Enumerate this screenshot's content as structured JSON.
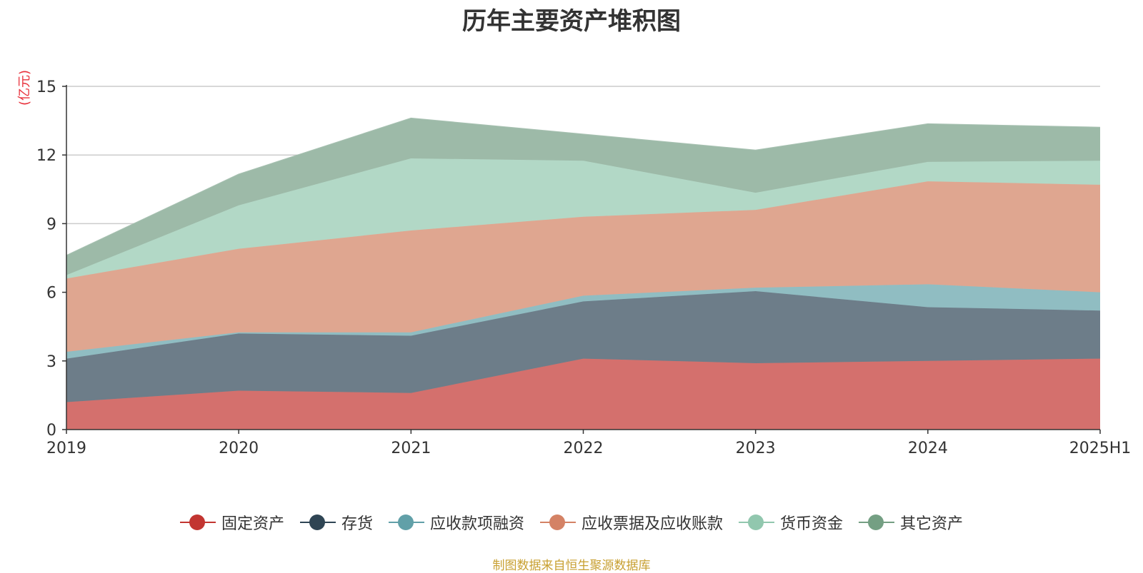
{
  "chart_data": {
    "type": "area",
    "stacked": true,
    "title": "历年主要资产堆积图",
    "unit_label": "(亿元)",
    "source_note": "制图数据来自恒生聚源数据库",
    "categories": [
      "2019",
      "2020",
      "2021",
      "2022",
      "2023",
      "2024",
      "2025H1"
    ],
    "ylim": [
      0,
      15
    ],
    "yticks": [
      0,
      3,
      6,
      9,
      12,
      15
    ],
    "grid": true,
    "legend_position": "bottom",
    "series": [
      {
        "name": "固定资产",
        "color": "#c23531",
        "area_color": "#d4706d",
        "values": [
          1.2,
          1.7,
          1.6,
          3.1,
          2.9,
          3.0,
          3.1
        ]
      },
      {
        "name": "存货",
        "color": "#2f4554",
        "area_color": "#6d7d89",
        "values": [
          1.9,
          2.5,
          2.5,
          2.5,
          3.15,
          2.35,
          2.1
        ]
      },
      {
        "name": "应收款项融资",
        "color": "#61a0a8",
        "area_color": "#90bdc2",
        "values": [
          0.3,
          0.05,
          0.15,
          0.25,
          0.15,
          1.0,
          0.8
        ]
      },
      {
        "name": "应收票据及应收账款",
        "color": "#d48265",
        "area_color": "#dfa690",
        "values": [
          3.2,
          3.65,
          4.45,
          3.45,
          3.4,
          4.5,
          4.7
        ]
      },
      {
        "name": "货币资金",
        "color": "#91c7ae",
        "area_color": "#b2d8c6",
        "values": [
          0.15,
          1.9,
          3.15,
          2.45,
          0.75,
          0.85,
          1.05
        ]
      },
      {
        "name": "其它资产",
        "color": "#749f83",
        "area_color": "#9dbaa8",
        "values": [
          0.85,
          1.35,
          1.75,
          1.15,
          1.85,
          1.65,
          1.45
        ]
      }
    ]
  }
}
